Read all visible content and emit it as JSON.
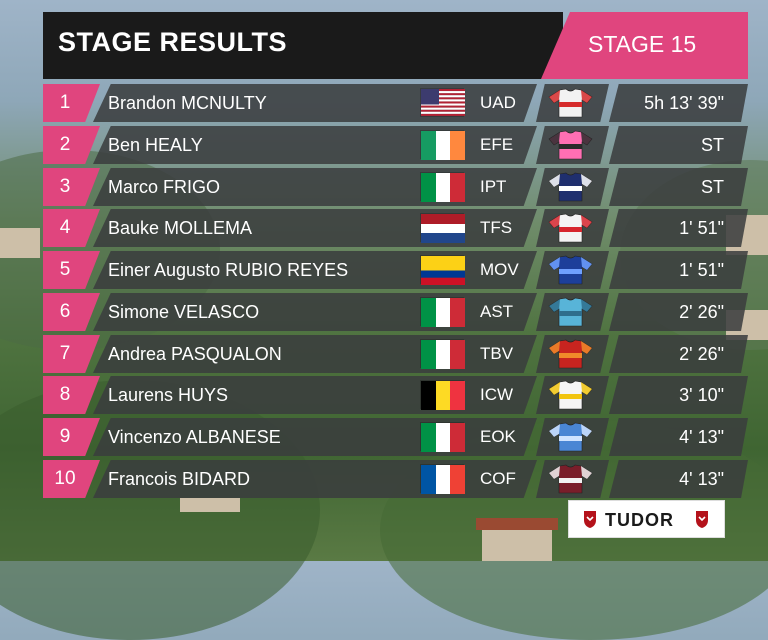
{
  "header": {
    "title": "STAGE RESULTS",
    "stage": "STAGE 15"
  },
  "colors": {
    "accent": "#e0457e",
    "panel": "#3a3c3e",
    "header_bg": "#1a1a1a"
  },
  "rows": [
    {
      "pos": "1",
      "name": "Brandon MCNULTY",
      "flag": "usa-flag",
      "team": "UAD",
      "jersey": "white-red-jersey",
      "time": "5h 13' 39\""
    },
    {
      "pos": "2",
      "name": "Ben HEALY",
      "flag": "ireland-flag",
      "team": "EFE",
      "jersey": "pink-jersey",
      "time": "ST"
    },
    {
      "pos": "3",
      "name": "Marco FRIGO",
      "flag": "italy-flag",
      "team": "IPT",
      "jersey": "navy-white-jersey",
      "time": "ST"
    },
    {
      "pos": "4",
      "name": "Bauke MOLLEMA",
      "flag": "netherlands-flag",
      "team": "TFS",
      "jersey": "white-red-black-jersey",
      "time": "1' 51\""
    },
    {
      "pos": "5",
      "name": "Einer Augusto RUBIO REYES",
      "flag": "colombia-flag",
      "team": "MOV",
      "jersey": "blue-jersey",
      "time": "1' 51\""
    },
    {
      "pos": "6",
      "name": "Simone VELASCO",
      "flag": "italy-flag",
      "team": "AST",
      "jersey": "light-blue-jersey",
      "time": "2' 26\""
    },
    {
      "pos": "7",
      "name": "Andrea PASQUALON",
      "flag": "italy-flag",
      "team": "TBV",
      "jersey": "red-orange-jersey",
      "time": "2' 26\""
    },
    {
      "pos": "8",
      "name": "Laurens HUYS",
      "flag": "belgium-flag",
      "team": "ICW",
      "jersey": "white-yellow-jersey",
      "time": "3' 10\""
    },
    {
      "pos": "9",
      "name": "Vincenzo ALBANESE",
      "flag": "italy-flag",
      "team": "EOK",
      "jersey": "sky-blue-jersey",
      "time": "4' 13\""
    },
    {
      "pos": "10",
      "name": "Francois BIDARD",
      "flag": "france-flag",
      "team": "COF",
      "jersey": "maroon-white-jersey",
      "time": "4' 13\""
    }
  ],
  "sponsor": {
    "name": "TUDOR"
  }
}
